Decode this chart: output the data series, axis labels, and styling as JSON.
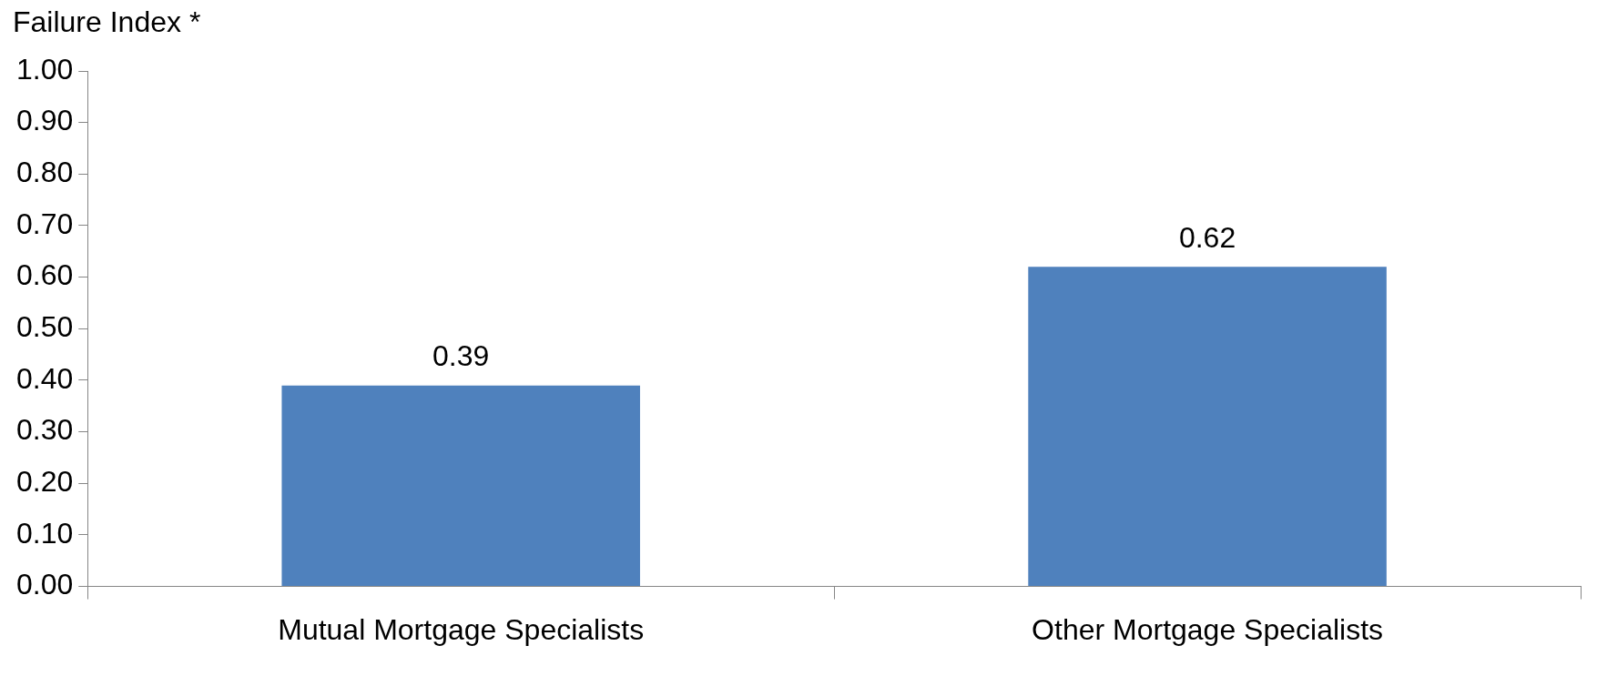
{
  "chart_data": {
    "type": "bar",
    "ylabel": "Failure Index *",
    "categories": [
      "Mutual Mortgage Specialists",
      "Other Mortgage Specialists"
    ],
    "values": [
      0.39,
      0.62
    ],
    "color": "#4f81bd",
    "ylim": [
      0,
      1
    ],
    "yticks": [
      {
        "value": 0,
        "label": "0.00"
      },
      {
        "value": 0.1,
        "label": "0.10"
      },
      {
        "value": 0.2,
        "label": "0.20"
      },
      {
        "value": 0.3,
        "label": "0.30"
      },
      {
        "value": 0.4,
        "label": "0.40"
      },
      {
        "value": 0.5,
        "label": "0.50"
      },
      {
        "value": 0.6,
        "label": "0.60"
      },
      {
        "value": 0.7,
        "label": "0.70"
      },
      {
        "value": 0.8,
        "label": "0.80"
      },
      {
        "value": 0.9,
        "label": "0.90"
      },
      {
        "value": 1,
        "label": "1.00"
      }
    ],
    "data_labels": true,
    "grid": false,
    "legend": false
  }
}
